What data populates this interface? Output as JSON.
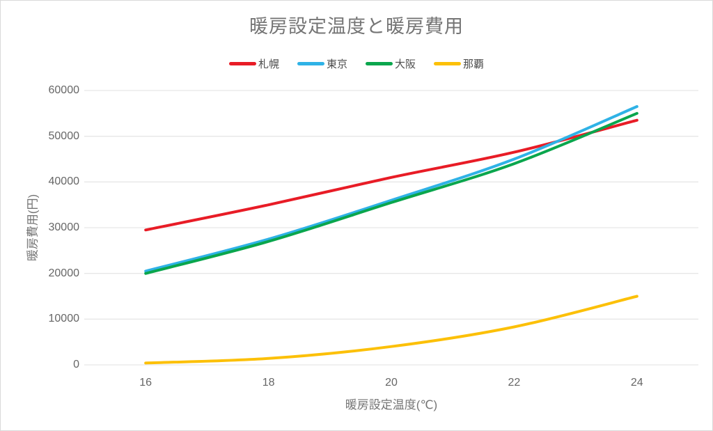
{
  "chart_data": {
    "type": "line",
    "title": "暖房設定温度と暖房費用",
    "xlabel": "暖房設定温度(℃)",
    "ylabel": "暖房費用(円)",
    "x": [
      16,
      18,
      20,
      22,
      24
    ],
    "x_tick_labels": [
      "16",
      "18",
      "20",
      "22",
      "24"
    ],
    "series": [
      {
        "name": "札幌",
        "color": "#e81c26",
        "values": [
          29500,
          35000,
          41000,
          46500,
          53500
        ]
      },
      {
        "name": "東京",
        "color": "#2fb2e6",
        "values": [
          20500,
          27500,
          36000,
          45000,
          56500
        ]
      },
      {
        "name": "大阪",
        "color": "#0aa64d",
        "values": [
          20000,
          27000,
          35500,
          44000,
          55000
        ]
      },
      {
        "name": "那覇",
        "color": "#fcc008",
        "values": [
          400,
          1400,
          4000,
          8300,
          15000
        ]
      }
    ],
    "ylim": [
      0,
      60000
    ],
    "yticks": [
      0,
      10000,
      20000,
      30000,
      40000,
      50000,
      60000
    ],
    "ytick_labels": [
      "0",
      "10000",
      "20000",
      "30000",
      "40000",
      "50000",
      "60000"
    ],
    "grid": "horizontal",
    "line_style": "smooth",
    "legend_position": "top"
  },
  "colors": {
    "background": "#ffffff",
    "canvas_border": "#d9d9d9",
    "gridline": "#e6e6e6",
    "title_text": "#757575",
    "axis_title_text": "#757575",
    "tick_text": "#666666",
    "legend_text": "#4d4d4d"
  }
}
